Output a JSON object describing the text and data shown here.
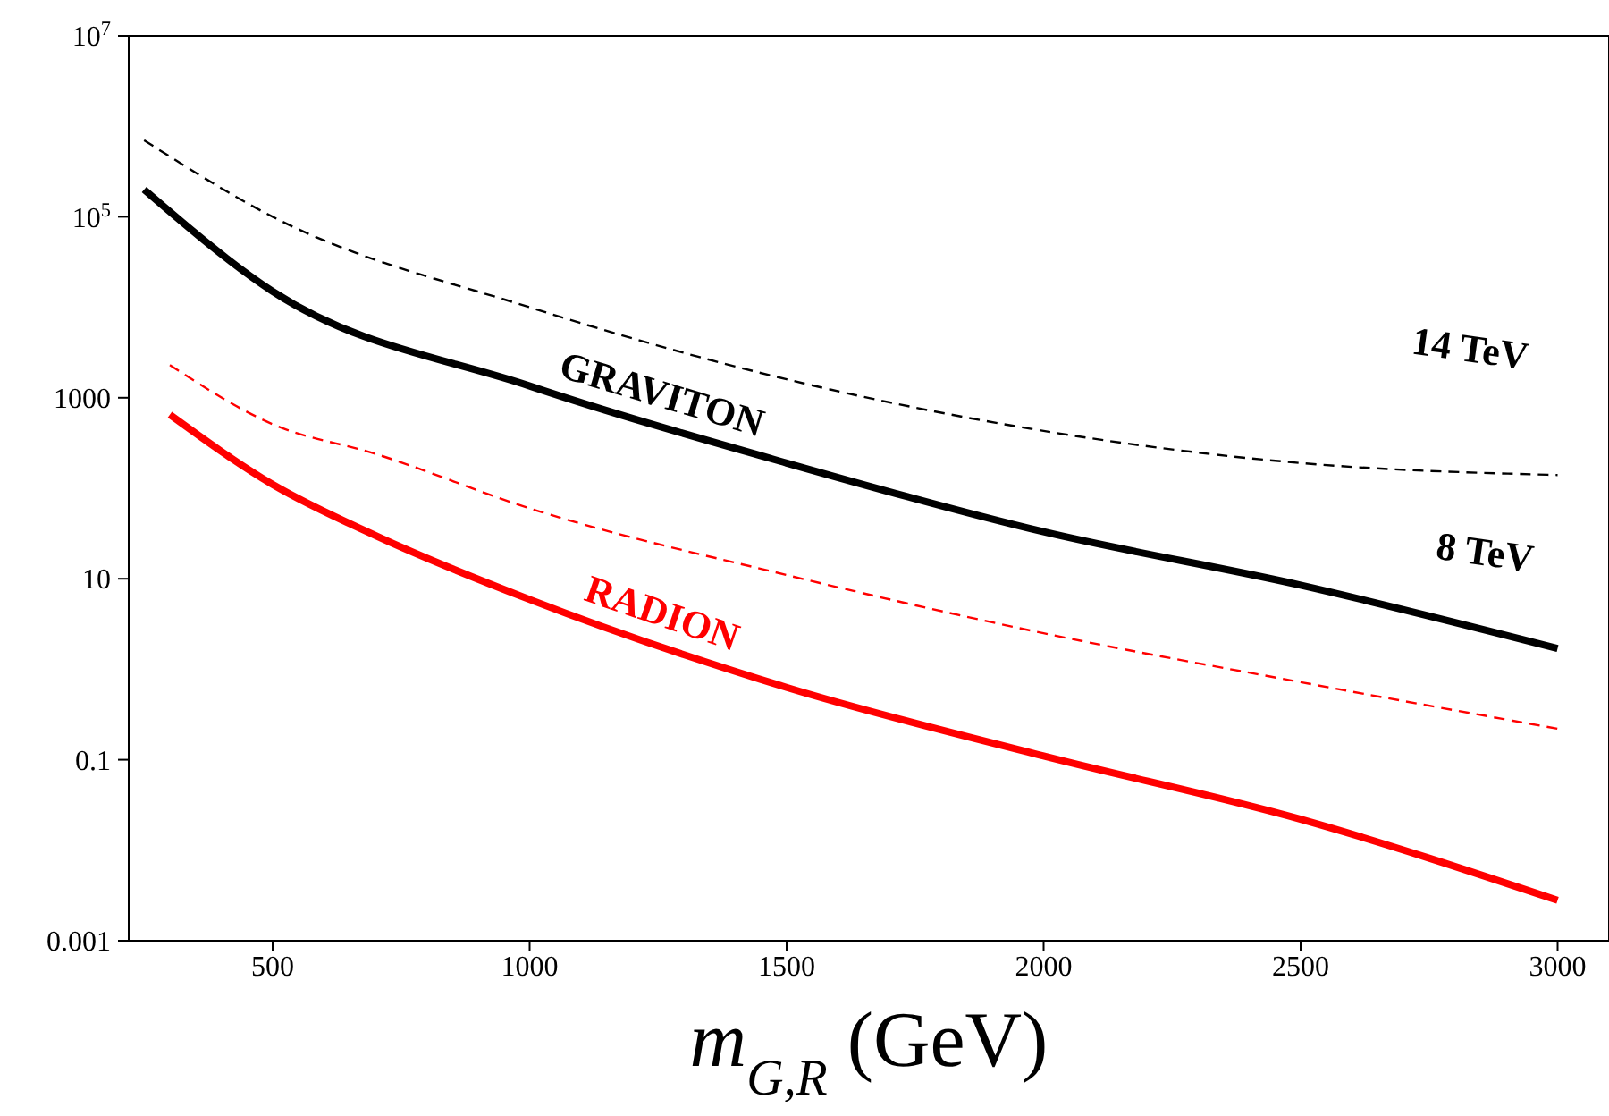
{
  "chart_data": {
    "type": "line",
    "xlabel": "m$_{G,R}$ (GeV)",
    "log": "y",
    "marker": "none",
    "xlim": [
      220,
      3100
    ],
    "xticks": [
      500,
      1000,
      1500,
      2000,
      2500,
      3000
    ],
    "ylim": [
      0.001,
      10000000
    ],
    "yticks": [
      0.001,
      0.1,
      10,
      1000,
      {
        "value": 100000,
        "label": "10$^{5}$"
      },
      {
        "value": 10000000,
        "label": "10$^{7}$"
      }
    ],
    "series": [
      {
        "name": "GRAVITON",
        "color": "#000000",
        "line_style": "solid",
        "x": [
          250,
          500,
          1000,
          1500,
          2000,
          2500,
          3000
        ],
        "values": [
          200000,
          15000,
          1350,
          190,
          33,
          8.5,
          1.7
        ]
      },
      {
        "color": "#000000",
        "line_style": "dashed",
        "x": [
          250,
          500,
          1000,
          1500,
          2000,
          2500,
          3000
        ],
        "values": [
          700000,
          100000,
          10000,
          1600,
          430,
          190,
          140
        ]
      },
      {
        "color": "#ff0000",
        "line_style": "dashed",
        "x": [
          300,
          500,
          700,
          1000,
          1500,
          2000,
          2500,
          3000
        ],
        "values": [
          2300,
          510,
          240,
          60,
          11,
          2.5,
          0.72,
          0.22
        ]
      },
      {
        "name": "RADION",
        "color": "#ff0000",
        "line_style": "solid",
        "x": [
          300,
          500,
          700,
          1000,
          1500,
          2000,
          2500,
          3000
        ],
        "values": [
          650,
          110,
          30,
          5.9,
          0.63,
          0.11,
          0.022,
          0.0028
        ]
      }
    ],
    "annotations": [
      "14 TeV",
      "8 TeV"
    ]
  }
}
